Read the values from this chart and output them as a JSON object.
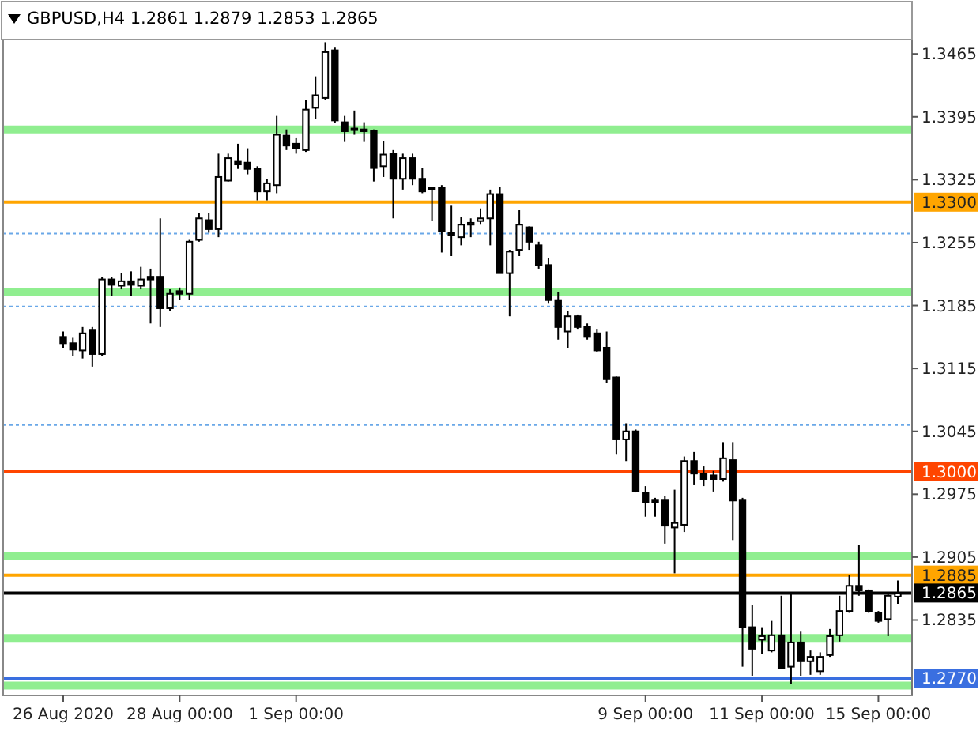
{
  "chart_data": {
    "type": "candlestick",
    "title": "GBPUSD,H4  1.2861 1.2879 1.2853 1.2865",
    "categories": [
      "26 Aug 2020",
      null,
      null,
      null,
      null,
      null,
      null,
      null,
      null,
      null,
      null,
      null,
      "28 Aug 00:00",
      null,
      null,
      null,
      null,
      null,
      null,
      null,
      null,
      null,
      null,
      null,
      "1 Sep 00:00",
      null,
      null,
      null,
      null,
      null,
      null,
      null,
      null,
      null,
      null,
      null,
      null,
      null,
      null,
      null,
      null,
      null,
      null,
      null,
      null,
      null,
      null,
      null,
      null,
      null,
      null,
      null,
      null,
      null,
      null,
      null,
      null,
      null,
      null,
      null,
      "9 Sep 00:00",
      null,
      null,
      null,
      null,
      null,
      null,
      null,
      null,
      null,
      null,
      null,
      "11 Sep 00:00",
      null,
      null,
      null,
      null,
      null,
      null,
      null,
      null,
      null,
      null,
      null,
      "15 Sep 00:00",
      null,
      null
    ],
    "ohlc": [
      [
        1.315,
        1.3156,
        1.3138,
        1.3143
      ],
      [
        1.3143,
        1.3149,
        1.3129,
        1.3136
      ],
      [
        1.3135,
        1.3161,
        1.3126,
        1.3154
      ],
      [
        1.3158,
        1.3161,
        1.3117,
        1.3131
      ],
      [
        1.3131,
        1.3217,
        1.3129,
        1.3214
      ],
      [
        1.3214,
        1.3217,
        1.3196,
        1.3208
      ],
      [
        1.3207,
        1.3221,
        1.3203,
        1.3212
      ],
      [
        1.3212,
        1.3223,
        1.3196,
        1.3208
      ],
      [
        1.3207,
        1.3228,
        1.3203,
        1.3214
      ],
      [
        1.3217,
        1.3226,
        1.3165,
        1.3214
      ],
      [
        1.3217,
        1.3282,
        1.3161,
        1.3182
      ],
      [
        1.3182,
        1.3203,
        1.3179,
        1.3198
      ],
      [
        1.3201,
        1.3205,
        1.3191,
        1.3198
      ],
      [
        1.3198,
        1.3258,
        1.3191,
        1.3256
      ],
      [
        1.3258,
        1.3288,
        1.3256,
        1.3282
      ],
      [
        1.328,
        1.3288,
        1.3266,
        1.327
      ],
      [
        1.327,
        1.3354,
        1.3261,
        1.3328
      ],
      [
        1.3324,
        1.3354,
        1.3323,
        1.3349
      ],
      [
        1.3345,
        1.3365,
        1.3337,
        1.3342
      ],
      [
        1.3344,
        1.336,
        1.3331,
        1.3337
      ],
      [
        1.3337,
        1.334,
        1.3302,
        1.3312
      ],
      [
        1.3312,
        1.3326,
        1.3302,
        1.3321
      ],
      [
        1.3319,
        1.3396,
        1.331,
        1.3375
      ],
      [
        1.3374,
        1.3381,
        1.3358,
        1.3363
      ],
      [
        1.3365,
        1.3372,
        1.3354,
        1.336
      ],
      [
        1.3358,
        1.3414,
        1.3356,
        1.3403
      ],
      [
        1.3405,
        1.344,
        1.3393,
        1.3419
      ],
      [
        1.3416,
        1.3478,
        1.3414,
        1.3467
      ],
      [
        1.3469,
        1.3472,
        1.3388,
        1.3391
      ],
      [
        1.3389,
        1.3396,
        1.3367,
        1.3379
      ],
      [
        1.3382,
        1.3402,
        1.3375,
        1.3381
      ],
      [
        1.3381,
        1.3389,
        1.3367,
        1.3379
      ],
      [
        1.3379,
        1.3381,
        1.3323,
        1.3338
      ],
      [
        1.334,
        1.3368,
        1.3328,
        1.3353
      ],
      [
        1.3354,
        1.3358,
        1.3282,
        1.3326
      ],
      [
        1.3326,
        1.3354,
        1.3314,
        1.3349
      ],
      [
        1.3349,
        1.3354,
        1.3319,
        1.3326
      ],
      [
        1.3326,
        1.3338,
        1.331,
        1.3312
      ],
      [
        1.3316,
        1.3317,
        1.3279,
        1.3314
      ],
      [
        1.3316,
        1.3319,
        1.3244,
        1.3268
      ],
      [
        1.3266,
        1.3296,
        1.324,
        1.3263
      ],
      [
        1.3261,
        1.3284,
        1.3252,
        1.3275
      ],
      [
        1.3275,
        1.3282,
        1.3261,
        1.3277
      ],
      [
        1.3279,
        1.3293,
        1.3275,
        1.3282
      ],
      [
        1.3282,
        1.3314,
        1.3252,
        1.3309
      ],
      [
        1.3309,
        1.3317,
        1.3221,
        1.3221
      ],
      [
        1.3221,
        1.3247,
        1.3173,
        1.3245
      ],
      [
        1.3247,
        1.3291,
        1.324,
        1.3275
      ],
      [
        1.3272,
        1.3273,
        1.3247,
        1.3256
      ],
      [
        1.3252,
        1.3256,
        1.3226,
        1.323
      ],
      [
        1.323,
        1.3238,
        1.3187,
        1.3191
      ],
      [
        1.3191,
        1.32,
        1.3147,
        1.3161
      ],
      [
        1.3156,
        1.3179,
        1.3138,
        1.3173
      ],
      [
        1.3173,
        1.3175,
        1.3159,
        1.3161
      ],
      [
        1.3161,
        1.3165,
        1.3147,
        1.315
      ],
      [
        1.3154,
        1.3159,
        1.3133,
        1.3135
      ],
      [
        1.3138,
        1.3156,
        1.3099,
        1.3103
      ],
      [
        1.3105,
        1.3106,
        1.3019,
        1.3036
      ],
      [
        1.3036,
        1.3054,
        1.3012,
        1.3045
      ],
      [
        1.3045,
        1.3047,
        1.2977,
        1.2978
      ],
      [
        1.2977,
        1.2984,
        1.295,
        1.2966
      ],
      [
        1.2968,
        1.2971,
        1.295,
        1.2966
      ],
      [
        1.2968,
        1.2973,
        1.292,
        1.294
      ],
      [
        1.2938,
        1.298,
        1.2887,
        1.2943
      ],
      [
        1.2941,
        1.3017,
        1.2933,
        1.3012
      ],
      [
        1.3012,
        1.3022,
        1.2985,
        1.2998
      ],
      [
        1.2998,
        1.3006,
        1.2984,
        1.2992
      ],
      [
        1.2996,
        1.3001,
        1.2978,
        1.2992
      ],
      [
        1.2992,
        1.3033,
        1.2989,
        1.3015
      ],
      [
        1.3013,
        1.3033,
        1.2924,
        1.2968
      ],
      [
        1.2968,
        1.2971,
        1.2783,
        1.2827
      ],
      [
        1.2827,
        1.2852,
        1.2773,
        1.2803
      ],
      [
        1.2813,
        1.2827,
        1.2797,
        1.2817
      ],
      [
        1.2801,
        1.2834,
        1.2799,
        1.2818
      ],
      [
        1.2818,
        1.2862,
        1.278,
        1.2781
      ],
      [
        1.2783,
        1.2864,
        1.2764,
        1.281
      ],
      [
        1.281,
        1.2822,
        1.2773,
        1.2789
      ],
      [
        1.2789,
        1.2801,
        1.2774,
        1.2794
      ],
      [
        1.2778,
        1.2799,
        1.2774,
        1.2794
      ],
      [
        1.2796,
        1.2825,
        1.2794,
        1.2817
      ],
      [
        1.2818,
        1.2862,
        1.2811,
        1.2845
      ],
      [
        1.2845,
        1.2885,
        1.2843,
        1.2873
      ],
      [
        1.2873,
        1.2919,
        1.2862,
        1.2868
      ],
      [
        1.2868,
        1.2869,
        1.2843,
        1.2845
      ],
      [
        1.2843,
        1.2845,
        1.2832,
        1.2834
      ],
      [
        1.2836,
        1.2864,
        1.2817,
        1.2862
      ],
      [
        1.2861,
        1.2879,
        1.2853,
        1.2865
      ]
    ],
    "ylim": [
      1.2751,
      1.3481
    ],
    "yticks": [
      1.3465,
      1.3395,
      1.3325,
      1.3255,
      1.3185,
      1.3115,
      1.3045,
      1.2975,
      1.2905,
      1.2835
    ],
    "ref_lines": [
      {
        "axis": "y",
        "value": 1.3381,
        "color": "#90ee90",
        "line_style": "solid"
      },
      {
        "axis": "y",
        "value": 1.33,
        "label": "1.3300",
        "color": "#ffa500",
        "line_style": "solid"
      },
      {
        "axis": "y",
        "value": 1.3265,
        "color": "#6aa8e8",
        "line_style": "dotted"
      },
      {
        "axis": "y",
        "value": 1.32,
        "color": "#90ee90",
        "line_style": "solid"
      },
      {
        "axis": "y",
        "value": 1.3184,
        "color": "#6aa8e8",
        "line_style": "dotted"
      },
      {
        "axis": "y",
        "value": 1.3052,
        "color": "#6aa8e8",
        "line_style": "dotted"
      },
      {
        "axis": "y",
        "value": 1.3,
        "label": "1.3000",
        "color": "#ff4500",
        "line_style": "solid"
      },
      {
        "axis": "y",
        "value": 1.2906,
        "color": "#90ee90",
        "line_style": "solid"
      },
      {
        "axis": "y",
        "value": 1.2885,
        "label": "1.2885",
        "color": "#ffa500",
        "line_style": "solid"
      },
      {
        "axis": "y",
        "value": 1.2865,
        "label": "1.2865",
        "color": "#000000",
        "line_style": "solid"
      },
      {
        "axis": "y",
        "value": 1.2815,
        "color": "#90ee90",
        "line_style": "solid"
      },
      {
        "axis": "y",
        "value": 1.277,
        "label": "1.2770",
        "color": "#3a6fe0",
        "line_style": "solid"
      },
      {
        "axis": "y",
        "value": 1.2762,
        "color": "#90ee90",
        "line_style": "solid"
      }
    ],
    "grid": false
  }
}
